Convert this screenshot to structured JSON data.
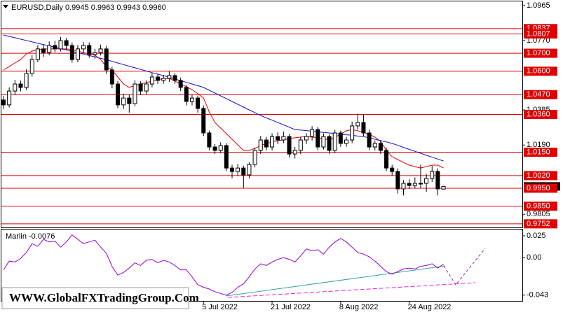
{
  "chart_data": [
    {
      "type": "candlestick",
      "title": "EURUSD,Daily  0.9945 0.9963 0.9943 0.9960",
      "categories": [
        null,
        null,
        null,
        null,
        null,
        null,
        null,
        null,
        null,
        null,
        null,
        null,
        null,
        null,
        null,
        null,
        null,
        null,
        null,
        null,
        null,
        null,
        null,
        null,
        null,
        null,
        null,
        null,
        null,
        null,
        null,
        null,
        null,
        null,
        null,
        "5 Jul 2022",
        null,
        null,
        null,
        null,
        null,
        null,
        null,
        null,
        null,
        null,
        null,
        "21 Jul 2022",
        null,
        null,
        null,
        null,
        null,
        null,
        null,
        null,
        null,
        null,
        null,
        "8 Aug 2022",
        null,
        null,
        null,
        null,
        null,
        null,
        null,
        null,
        null,
        null,
        null,
        "24 Aug 2022",
        null,
        null,
        null,
        null,
        null,
        null
      ],
      "open": [
        1.044,
        1.0413,
        1.049,
        1.0529,
        1.051,
        1.0588,
        1.0665,
        1.0724,
        1.0704,
        1.0743,
        1.0724,
        1.077,
        1.0743,
        1.0665,
        1.0724,
        1.0743,
        1.0693,
        1.0704,
        1.0724,
        1.0607,
        1.0529,
        1.0413,
        1.0451,
        1.042,
        1.0529,
        1.049,
        1.0529,
        1.0568,
        1.0549,
        1.056,
        1.0576,
        1.0549,
        1.051,
        1.0432,
        1.0451,
        1.0393,
        1.0257,
        1.0179,
        1.016,
        1.0187,
        1.0062,
        1.0043,
        1.0062,
        1.0024,
        1.0082,
        1.016,
        1.0218,
        1.0179,
        1.0237,
        1.0218,
        1.0237,
        1.014,
        1.016,
        1.0218,
        1.0237,
        1.0276,
        1.0179,
        1.0237,
        1.016,
        1.0257,
        1.0199,
        1.0218,
        1.0296,
        1.0315,
        1.0257,
        1.0179,
        1.0199,
        1.016,
        1.0062,
        1.0043,
        0.9946,
        0.9977,
        0.9965,
        0.9977,
        0.9977,
        1.0004,
        1.0043,
        0.9945
      ],
      "high": [
        1.0462,
        1.051,
        1.0552,
        1.0548,
        1.061,
        1.069,
        1.0745,
        1.075,
        1.0765,
        1.077,
        1.079,
        1.0785,
        1.076,
        1.0745,
        1.0762,
        1.076,
        1.0725,
        1.0748,
        1.074,
        1.0625,
        1.0545,
        1.0475,
        1.047,
        1.055,
        1.0545,
        1.055,
        1.059,
        1.0585,
        1.058,
        1.06,
        1.059,
        1.0565,
        1.0525,
        1.047,
        1.0465,
        1.041,
        1.027,
        1.0195,
        1.0205,
        1.02,
        1.008,
        1.0085,
        1.0075,
        1.0095,
        1.0175,
        1.024,
        1.0235,
        1.0255,
        1.026,
        1.0265,
        1.025,
        1.018,
        1.0235,
        1.0255,
        1.0295,
        1.029,
        1.0255,
        1.025,
        1.0275,
        1.027,
        1.0235,
        1.032,
        1.0365,
        1.036,
        1.0275,
        1.0215,
        1.0215,
        1.0175,
        1.008,
        1.006,
        0.9995,
        1.0,
        1.001,
        1.008,
        1.003,
        1.0075,
        1.006,
        0.9963
      ],
      "low": [
        1.039,
        1.0398,
        1.047,
        1.0488,
        1.0495,
        1.057,
        1.065,
        1.068,
        1.0688,
        1.0705,
        1.071,
        1.072,
        1.0648,
        1.065,
        1.0702,
        1.0675,
        1.067,
        1.0688,
        1.0585,
        1.0505,
        1.0395,
        1.039,
        1.037,
        1.0405,
        1.047,
        1.0472,
        1.051,
        1.053,
        1.053,
        1.054,
        1.053,
        1.049,
        1.041,
        1.041,
        1.037,
        1.024,
        1.016,
        1.014,
        1.0145,
        1.0045,
        1.0005,
        1.002,
        0.9952,
        1.0005,
        1.0065,
        1.014,
        1.016,
        1.016,
        1.0195,
        1.02,
        1.012,
        1.0115,
        1.014,
        1.0195,
        1.0215,
        1.016,
        1.0165,
        1.014,
        1.0145,
        1.018,
        1.018,
        1.02,
        1.0275,
        1.024,
        1.016,
        1.016,
        1.014,
        1.0045,
        1.002,
        0.992,
        0.991,
        0.9945,
        0.9948,
        0.995,
        0.993,
        0.9985,
        0.991,
        0.9943
      ],
      "close": [
        1.0413,
        1.049,
        1.0529,
        1.051,
        1.0588,
        1.0665,
        1.0724,
        1.0704,
        1.0743,
        1.0724,
        1.077,
        1.0743,
        1.0665,
        1.0724,
        1.0743,
        1.0693,
        1.0704,
        1.0724,
        1.0607,
        1.0529,
        1.0413,
        1.0451,
        1.042,
        1.0529,
        1.049,
        1.0529,
        1.0568,
        1.0549,
        1.056,
        1.0576,
        1.0549,
        1.051,
        1.0432,
        1.0451,
        1.0393,
        1.0257,
        1.0179,
        1.016,
        1.0187,
        1.0062,
        1.0043,
        1.0062,
        1.0024,
        1.0082,
        1.016,
        1.0218,
        1.0179,
        1.0237,
        1.0218,
        1.0237,
        1.014,
        1.016,
        1.0218,
        1.0237,
        1.0276,
        1.0179,
        1.0237,
        1.016,
        1.0257,
        1.0199,
        1.0218,
        1.0296,
        1.0315,
        1.0257,
        1.0179,
        1.0199,
        1.016,
        1.0062,
        1.0043,
        0.9946,
        0.9977,
        0.9965,
        0.9977,
        0.9977,
        1.0004,
        1.0043,
        0.9946,
        0.996
      ],
      "series": [
        {
          "color": "#e00000",
          "values": [
            1.0607,
            1.0626,
            1.0646,
            1.0665,
            1.0696,
            1.0712,
            1.072,
            1.0724,
            1.0724,
            1.0724,
            1.0724,
            1.0724,
            1.072,
            1.0712,
            1.0704,
            1.0696,
            1.0689,
            1.0665,
            1.0626,
            1.0607,
            1.0568,
            1.0529,
            1.051,
            1.0521,
            1.0529,
            1.0537,
            1.0545,
            1.0553,
            1.056,
            1.056,
            1.0545,
            1.0529,
            1.0514,
            1.0498,
            1.0475,
            1.0451,
            1.0374,
            1.0315,
            1.0284,
            1.0253,
            1.0222,
            1.0191,
            1.016,
            1.016,
            1.0171,
            1.0187,
            1.0199,
            1.0206,
            1.0214,
            1.0218,
            1.0226,
            1.023,
            1.0234,
            1.0237,
            1.0234,
            1.023,
            1.0226,
            1.0218,
            1.0234,
            1.0249,
            1.0269,
            1.0276,
            1.0269,
            1.0261,
            1.0249,
            1.0234,
            1.021,
            1.016,
            1.0125,
            1.0109,
            1.0093,
            1.0078,
            1.007,
            1.0062,
            1.007,
            1.0078,
            1.0078,
            1.0062
          ]
        },
        {
          "color": "#1010c8",
          "values": [
            1.0801,
            1.0793,
            1.0786,
            1.0778,
            1.0771,
            1.0763,
            1.0755,
            1.0748,
            1.074,
            1.0733,
            1.0725,
            1.0718,
            1.071,
            1.0702,
            1.0695,
            1.0687,
            1.068,
            1.0672,
            1.0664,
            1.0655,
            1.0646,
            1.0637,
            1.0628,
            1.0619,
            1.061,
            1.0601,
            1.0592,
            1.0584,
            1.0575,
            1.0566,
            1.0557,
            1.0547,
            1.0538,
            1.0529,
            1.052,
            1.051,
            1.0494,
            1.0479,
            1.0463,
            1.0448,
            1.0432,
            1.0416,
            1.0401,
            1.0385,
            1.037,
            1.0354,
            1.0341,
            1.0328,
            1.0315,
            1.0302,
            1.0289,
            1.0276,
            1.0273,
            1.027,
            1.0267,
            1.0263,
            1.026,
            1.0257,
            1.0254,
            1.025,
            1.0247,
            1.0244,
            1.024,
            1.0237,
            1.0229,
            1.0222,
            1.0214,
            1.0207,
            1.0199,
            1.0188,
            1.0177,
            1.0166,
            1.0155,
            1.0144,
            1.0133,
            1.0122,
            1.0112,
            1.0101
          ]
        }
      ],
      "levels": [
        {
          "value": 1.0837,
          "label": "1.0837"
        },
        {
          "value": 1.0807,
          "label": "1.0807"
        },
        {
          "value": 1.07,
          "label": "1.0700"
        },
        {
          "value": 1.06,
          "label": "1.0600"
        },
        {
          "value": 1.047,
          "label": "1.0470"
        },
        {
          "value": 1.036,
          "label": "1.0360"
        },
        {
          "value": 1.015,
          "label": "1.0150"
        },
        {
          "value": 1.002,
          "label": "1.0020"
        },
        {
          "value": 0.995,
          "label": "0.9950"
        },
        {
          "value": 0.985,
          "label": "0.9850"
        },
        {
          "value": 0.9752,
          "label": "0.9752"
        }
      ],
      "level_color": "#e00000",
      "ylim": [
        0.9732,
        1.0988
      ],
      "yticks": [
        1.0965,
        {
          "value": 1.077,
          "label": "1.0770"
        },
        1.0385,
        {
          "value": 1.019,
          "label": "1.0190"
        },
        0.9805
      ]
    },
    {
      "type": "line",
      "title": "Marlin -0.0076",
      "series": [
        {
          "color": "#9400d3",
          "values": [
            -0.014,
            -0.004,
            -0.005,
            -0.001,
            0.006,
            0.016,
            0.013,
            0.021,
            0.018,
            0.019,
            0.012,
            0.018,
            0.026,
            0.021,
            0.016,
            0.018,
            0.02,
            0.012,
            0.005,
            -0.01,
            -0.02,
            -0.017,
            -0.012,
            -0.006,
            -0.009,
            -0.003,
            -0.002,
            -0.006,
            -0.003,
            -0.005,
            -0.009,
            -0.014,
            -0.014,
            -0.022,
            -0.031,
            -0.034,
            -0.036,
            -0.039,
            -0.041,
            -0.043,
            -0.04,
            -0.034,
            -0.03,
            -0.022,
            -0.013,
            -0.007,
            -0.009,
            -0.005,
            -0.002,
            0,
            -0.002,
            -0.005,
            0.002,
            0.01,
            0.008,
            0.009,
            0.004,
            0.012,
            0.018,
            0.022,
            0.018,
            0.012,
            0.006,
            0.004,
            0.001,
            -0.004,
            -0.01,
            -0.016,
            -0.019,
            -0.016,
            -0.013,
            -0.012,
            -0.013,
            -0.01,
            -0.009,
            -0.007,
            -0.012,
            -0.0076
          ]
        }
      ],
      "ylim": [
        -0.0496,
        0.033
      ],
      "yticks": [
        0.025,
        {
          "value": 0,
          "label": "0.00"
        },
        -0.043
      ]
    }
  ],
  "watermark": "WWW.GlobalFXTradingGroup.Com"
}
